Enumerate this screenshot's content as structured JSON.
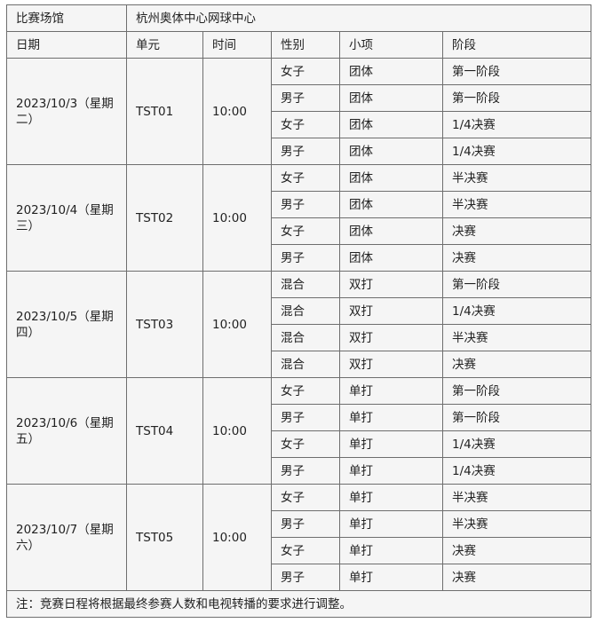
{
  "venue_label": "比赛场馆",
  "venue_value": "杭州奥体中心网球中心",
  "headers": [
    "日期",
    "单元",
    "时间",
    "性别",
    "小项",
    "阶段"
  ],
  "sessions": [
    {
      "date": "2023/10/3（星期二）",
      "unit": "TST01",
      "time": "10:00",
      "events": [
        {
          "gender": "女子",
          "event": "团体",
          "stage": "第一阶段"
        },
        {
          "gender": "男子",
          "event": "团体",
          "stage": "第一阶段"
        },
        {
          "gender": "女子",
          "event": "团体",
          "stage": "1/4决赛"
        },
        {
          "gender": "男子",
          "event": "团体",
          "stage": "1/4决赛"
        }
      ]
    },
    {
      "date": "2023/10/4（星期三）",
      "unit": "TST02",
      "time": "10:00",
      "events": [
        {
          "gender": "女子",
          "event": "团体",
          "stage": "半决赛"
        },
        {
          "gender": "男子",
          "event": "团体",
          "stage": "半决赛"
        },
        {
          "gender": "女子",
          "event": "团体",
          "stage": "决赛"
        },
        {
          "gender": "男子",
          "event": "团体",
          "stage": "决赛"
        }
      ]
    },
    {
      "date": "2023/10/5（星期四）",
      "unit": "TST03",
      "time": "10:00",
      "events": [
        {
          "gender": "混合",
          "event": "双打",
          "stage": "第一阶段"
        },
        {
          "gender": "混合",
          "event": "双打",
          "stage": "1/4决赛"
        },
        {
          "gender": "混合",
          "event": "双打",
          "stage": "半决赛"
        },
        {
          "gender": "混合",
          "event": "双打",
          "stage": "决赛"
        }
      ]
    },
    {
      "date": "2023/10/6（星期五）",
      "unit": "TST04",
      "time": "10:00",
      "events": [
        {
          "gender": "女子",
          "event": "单打",
          "stage": "第一阶段"
        },
        {
          "gender": "男子",
          "event": "单打",
          "stage": "第一阶段"
        },
        {
          "gender": "女子",
          "event": "单打",
          "stage": "1/4决赛"
        },
        {
          "gender": "男子",
          "event": "单打",
          "stage": "1/4决赛"
        }
      ]
    },
    {
      "date": "2023/10/7（星期六）",
      "unit": "TST05",
      "time": "10:00",
      "events": [
        {
          "gender": "女子",
          "event": "单打",
          "stage": "半决赛"
        },
        {
          "gender": "男子",
          "event": "单打",
          "stage": "半决赛"
        },
        {
          "gender": "女子",
          "event": "单打",
          "stage": "决赛"
        },
        {
          "gender": "男子",
          "event": "单打",
          "stage": "决赛"
        }
      ]
    }
  ],
  "note": "注：竞赛日程将根据最终参赛人数和电视转播的要求进行调整。"
}
